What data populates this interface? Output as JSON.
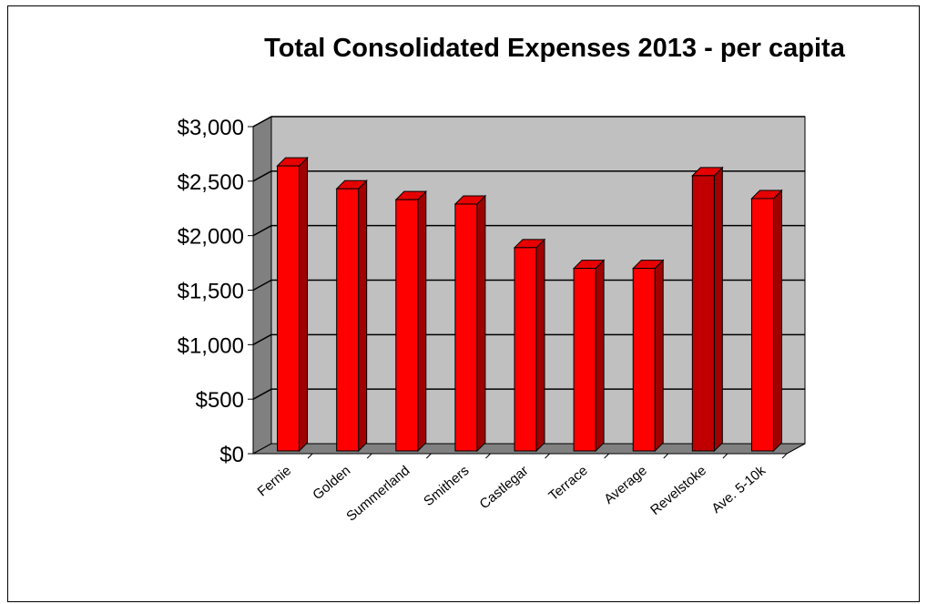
{
  "chart_data": {
    "type": "bar",
    "title": "Total Consolidated Expenses 2013 - per capita",
    "xlabel": "",
    "ylabel": "",
    "categories": [
      "Fernie",
      "Golden",
      "Summerland",
      "Smithers",
      "Castlegar",
      "Terrace",
      "Average",
      "Revelstoke",
      "Ave. 5-10k"
    ],
    "values": [
      2640,
      2430,
      2330,
      2290,
      1890,
      1700,
      1700,
      2550,
      2340
    ],
    "ylim": [
      0,
      3000
    ],
    "yticks": [
      0,
      500,
      1000,
      1500,
      2000,
      2500,
      3000
    ],
    "ytick_labels": [
      "$0",
      "$500",
      "$1,000",
      "$1,500",
      "$2,000",
      "$2,500",
      "$3,000"
    ],
    "grid": true,
    "legend": "none",
    "highlight_index": 7,
    "colors": {
      "bar": "#ff0000",
      "bar_highlight": "#c00000",
      "bar_side": "#a00000",
      "bar_top": "#e60000",
      "wall": "#c0c0c0",
      "wall_side": "#808080",
      "floor": "#808080",
      "grid": "#000000"
    }
  }
}
